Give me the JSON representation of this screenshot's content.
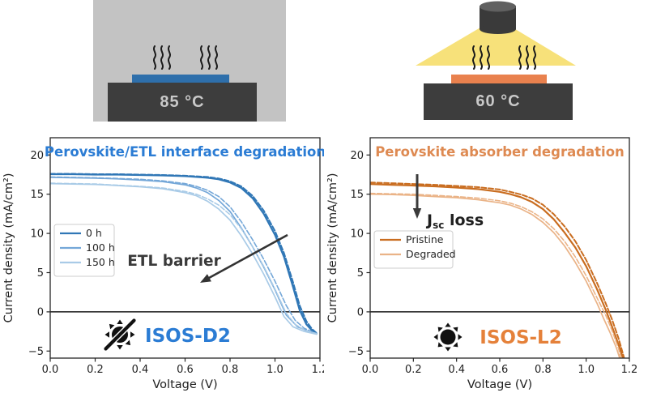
{
  "schematics": {
    "left": {
      "temperature": "85 °C"
    },
    "right": {
      "temperature": "60 °C"
    }
  },
  "chart_data": [
    {
      "type": "line",
      "title": "Perovskite/ETL interface degradation",
      "xlabel": "Voltage (V)",
      "ylabel": "Current density (mA/cm²)",
      "xlim": [
        0.0,
        1.2
      ],
      "ylim": [
        -5.9,
        22.2
      ],
      "xticks": [
        0.0,
        0.2,
        0.4,
        0.6,
        0.8,
        1.0,
        1.2
      ],
      "xtick_labels": [
        "0.0",
        "0.2",
        "0.4",
        "0.6",
        "0.8",
        "1.0",
        "1.2"
      ],
      "yticks": [
        -5,
        0,
        5,
        10,
        15,
        20
      ],
      "ytick_labels": [
        "−5",
        "0",
        "5",
        "10",
        "15",
        "20"
      ],
      "zero_line": true,
      "grid": false,
      "legend_position": "center-left",
      "legend": [
        {
          "label": "0 h",
          "color": "#3077b6"
        },
        {
          "label": "100 h",
          "color": "#74a7d8"
        },
        {
          "label": "150 h",
          "color": "#a9cbe7"
        }
      ],
      "annotation": {
        "text": "ETL barrier"
      },
      "badge": {
        "label": "ISOS-D2",
        "icon": "dark-crossed-sun-icon",
        "color": "#2b7cd4"
      },
      "colors": {
        "title": "#2b7cd4",
        "annotation": "#3a3a3a",
        "axis": "#262626"
      },
      "series": [
        {
          "name": "0 h forward",
          "dash": false,
          "width": 2.2,
          "color": "#3077b6",
          "x": [
            0,
            0.1,
            0.2,
            0.3,
            0.4,
            0.5,
            0.6,
            0.7,
            0.75,
            0.8,
            0.85,
            0.9,
            0.95,
            1.0,
            1.04,
            1.08,
            1.11,
            1.14,
            1.165,
            1.185
          ],
          "y": [
            17.55,
            17.55,
            17.5,
            17.5,
            17.45,
            17.4,
            17.3,
            17.1,
            16.9,
            16.5,
            15.8,
            14.5,
            12.5,
            9.8,
            7.0,
            3.2,
            0.2,
            -1.6,
            -2.4,
            -2.8
          ]
        },
        {
          "name": "0 h reverse",
          "dash": true,
          "width": 2.0,
          "color": "#3077b6",
          "x": [
            0,
            0.1,
            0.2,
            0.3,
            0.4,
            0.5,
            0.6,
            0.7,
            0.75,
            0.8,
            0.85,
            0.9,
            0.95,
            1.0,
            1.04,
            1.08,
            1.11,
            1.14,
            1.165,
            1.185
          ],
          "y": [
            17.6,
            17.6,
            17.55,
            17.55,
            17.5,
            17.45,
            17.35,
            17.2,
            17.0,
            16.65,
            16.0,
            14.8,
            12.9,
            10.3,
            7.5,
            3.8,
            0.8,
            -1.2,
            -2.2,
            -2.7
          ]
        },
        {
          "name": "100 h forward",
          "dash": false,
          "width": 1.7,
          "color": "#74a7d8",
          "x": [
            0,
            0.1,
            0.2,
            0.3,
            0.4,
            0.5,
            0.6,
            0.65,
            0.7,
            0.75,
            0.8,
            0.85,
            0.9,
            0.95,
            1.0,
            1.05,
            1.1,
            1.15,
            1.185
          ],
          "y": [
            17.15,
            17.1,
            17.05,
            16.95,
            16.8,
            16.6,
            16.2,
            15.8,
            15.2,
            14.2,
            12.8,
            10.7,
            8.3,
            5.7,
            2.8,
            -0.4,
            -1.9,
            -2.5,
            -2.8
          ]
        },
        {
          "name": "100 h reverse",
          "dash": true,
          "width": 1.6,
          "color": "#74a7d8",
          "x": [
            0,
            0.1,
            0.2,
            0.3,
            0.4,
            0.5,
            0.6,
            0.65,
            0.7,
            0.75,
            0.8,
            0.85,
            0.9,
            0.95,
            1.0,
            1.05,
            1.09,
            1.13,
            1.17,
            1.185
          ],
          "y": [
            17.2,
            17.15,
            17.1,
            17.0,
            16.9,
            16.7,
            16.35,
            16.0,
            15.5,
            14.7,
            13.4,
            11.5,
            9.2,
            6.7,
            3.9,
            0.8,
            -1.1,
            -2.1,
            -2.6,
            -2.75
          ]
        },
        {
          "name": "150 h forward",
          "dash": false,
          "width": 1.7,
          "color": "#a9cbe7",
          "x": [
            0,
            0.1,
            0.2,
            0.3,
            0.4,
            0.5,
            0.6,
            0.65,
            0.7,
            0.75,
            0.8,
            0.85,
            0.9,
            0.95,
            1.0,
            1.04,
            1.08,
            1.13,
            1.185
          ],
          "y": [
            16.35,
            16.3,
            16.25,
            16.1,
            15.95,
            15.7,
            15.2,
            14.8,
            14.1,
            13.1,
            11.7,
            9.7,
            7.4,
            4.8,
            1.9,
            -0.6,
            -1.9,
            -2.5,
            -2.85
          ]
        },
        {
          "name": "150 h reverse",
          "dash": true,
          "width": 1.6,
          "color": "#a9cbe7",
          "x": [
            0,
            0.1,
            0.2,
            0.3,
            0.4,
            0.5,
            0.6,
            0.65,
            0.7,
            0.75,
            0.8,
            0.85,
            0.9,
            0.95,
            1.0,
            1.05,
            1.09,
            1.13,
            1.185
          ],
          "y": [
            16.4,
            16.35,
            16.3,
            16.15,
            16.0,
            15.8,
            15.35,
            15.0,
            14.4,
            13.6,
            12.4,
            10.6,
            8.3,
            5.8,
            2.9,
            -0.2,
            -1.6,
            -2.3,
            -2.8
          ]
        }
      ]
    },
    {
      "type": "line",
      "title": "Perovskite absorber degradation",
      "xlabel": "Voltage (V)",
      "ylabel": "Current density (mA/cm²)",
      "xlim": [
        0.0,
        1.2
      ],
      "ylim": [
        -5.9,
        22.2
      ],
      "xticks": [
        0.0,
        0.2,
        0.4,
        0.6,
        0.8,
        1.0,
        1.2
      ],
      "xtick_labels": [
        "0.0",
        "0.2",
        "0.4",
        "0.6",
        "0.8",
        "1.0",
        "1.2"
      ],
      "yticks": [
        -5,
        0,
        5,
        10,
        15,
        20
      ],
      "ytick_labels": [
        "−5",
        "0",
        "5",
        "10",
        "15",
        "20"
      ],
      "zero_line": true,
      "grid": false,
      "legend_position": "center-left",
      "legend": [
        {
          "label": "Pristine",
          "color": "#c96d20"
        },
        {
          "label": "Degraded",
          "color": "#eab387"
        }
      ],
      "annotation": {
        "prefix": "J",
        "sub": "sc",
        "suffix": " loss"
      },
      "badge": {
        "label": "ISOS-L2",
        "icon": "sun-icon",
        "color": "#e5813a"
      },
      "colors": {
        "title": "#de8a52",
        "annotation": "#1f1f1f",
        "axis": "#262626"
      },
      "series": [
        {
          "name": "Pristine forward",
          "dash": false,
          "width": 2.2,
          "color": "#c96d20",
          "x": [
            0,
            0.1,
            0.2,
            0.3,
            0.4,
            0.5,
            0.6,
            0.65,
            0.7,
            0.75,
            0.8,
            0.85,
            0.9,
            0.95,
            1.0,
            1.05,
            1.09,
            1.12,
            1.15,
            1.17
          ],
          "y": [
            16.3,
            16.2,
            16.1,
            16.0,
            15.85,
            15.65,
            15.3,
            15.0,
            14.6,
            14.0,
            13.1,
            11.8,
            10.1,
            8.2,
            5.8,
            2.9,
            0.3,
            -1.9,
            -4.2,
            -5.9
          ]
        },
        {
          "name": "Pristine reverse",
          "dash": true,
          "width": 2.0,
          "color": "#c96d20",
          "x": [
            0,
            0.1,
            0.2,
            0.3,
            0.4,
            0.5,
            0.6,
            0.65,
            0.7,
            0.75,
            0.8,
            0.85,
            0.9,
            0.95,
            1.0,
            1.05,
            1.09,
            1.12,
            1.15,
            1.175
          ],
          "y": [
            16.5,
            16.4,
            16.3,
            16.2,
            16.05,
            15.9,
            15.6,
            15.3,
            14.95,
            14.45,
            13.65,
            12.45,
            10.9,
            9.0,
            6.6,
            3.7,
            1.1,
            -1.0,
            -3.4,
            -5.8
          ]
        },
        {
          "name": "Degraded forward",
          "dash": false,
          "width": 1.7,
          "color": "#eab387",
          "x": [
            0,
            0.1,
            0.2,
            0.3,
            0.4,
            0.5,
            0.6,
            0.65,
            0.7,
            0.75,
            0.8,
            0.85,
            0.9,
            0.95,
            1.0,
            1.05,
            1.08,
            1.11,
            1.14,
            1.155
          ],
          "y": [
            15.0,
            14.95,
            14.85,
            14.7,
            14.55,
            14.3,
            13.9,
            13.6,
            13.1,
            12.4,
            11.4,
            10.1,
            8.4,
            6.3,
            3.9,
            1.1,
            -0.8,
            -2.6,
            -4.6,
            -5.9
          ]
        },
        {
          "name": "Degraded reverse",
          "dash": true,
          "width": 1.6,
          "color": "#eab387",
          "x": [
            0,
            0.1,
            0.2,
            0.3,
            0.4,
            0.5,
            0.6,
            0.65,
            0.7,
            0.75,
            0.8,
            0.85,
            0.9,
            0.95,
            1.0,
            1.05,
            1.09,
            1.12,
            1.15,
            1.16
          ],
          "y": [
            15.1,
            15.05,
            15.0,
            14.85,
            14.7,
            14.5,
            14.15,
            13.85,
            13.4,
            12.75,
            11.85,
            10.6,
            9.0,
            7.0,
            4.6,
            1.8,
            -0.4,
            -2.4,
            -4.7,
            -5.9
          ]
        }
      ]
    }
  ]
}
